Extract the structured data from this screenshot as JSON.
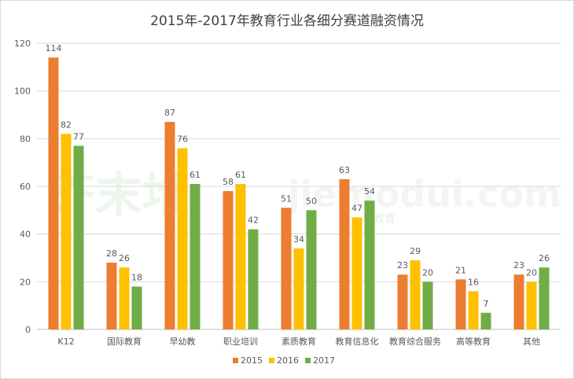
{
  "chart_data": {
    "type": "bar",
    "title": "2015年-2017年教育行业各细分赛道融资情况",
    "categories": [
      "K12",
      "国际教育",
      "早幼教",
      "职业培训",
      "素质教育",
      "教育信息化",
      "教育综合服务",
      "高等教育",
      "其他"
    ],
    "series": [
      {
        "name": "2015",
        "color": "#ed7d31",
        "values": [
          114,
          28,
          87,
          58,
          51,
          63,
          23,
          21,
          23
        ]
      },
      {
        "name": "2016",
        "color": "#ffc000",
        "values": [
          82,
          26,
          76,
          61,
          34,
          47,
          29,
          16,
          20
        ]
      },
      {
        "name": "2017",
        "color": "#70ad47",
        "values": [
          77,
          18,
          61,
          42,
          50,
          54,
          20,
          7,
          26
        ]
      }
    ],
    "ylim": [
      0,
      120
    ],
    "yticks": [
      0,
      20,
      40,
      60,
      80,
      100,
      120
    ],
    "grid": true,
    "legend_position": "bottom-center",
    "watermark": {
      "text": "jiemodui.com",
      "logo_text": "芥末堆",
      "slogan": "看教育"
    }
  }
}
